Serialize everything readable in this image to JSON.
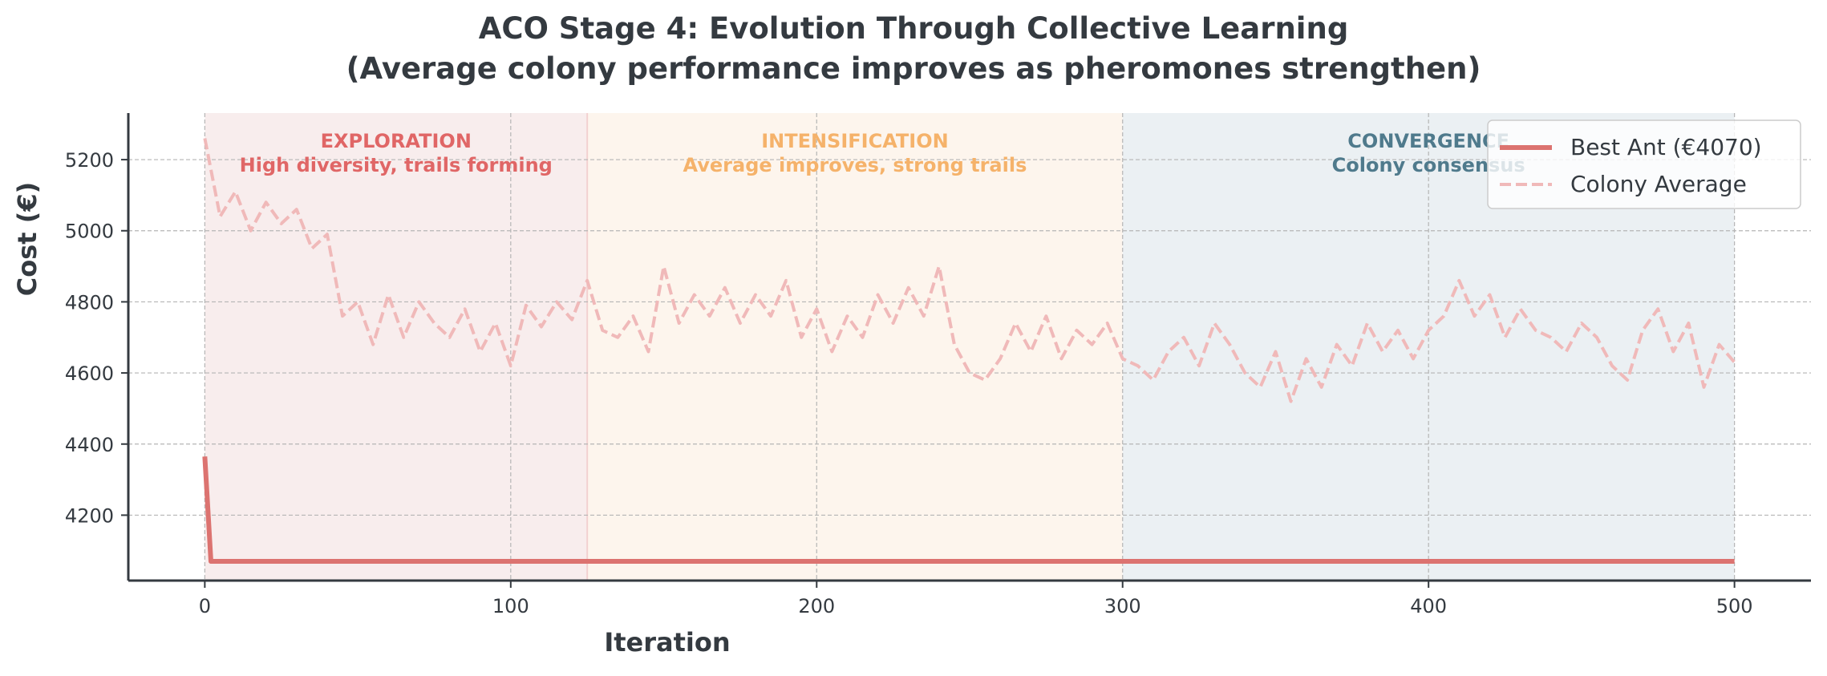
{
  "chart_data": {
    "type": "line",
    "title": "ACO Stage 4: Evolution Through Collective Learning",
    "subtitle": "(Average colony performance improves as pheromones strengthen)",
    "xlabel": "Iteration",
    "ylabel": "Cost (€)",
    "xlim": [
      -25,
      525
    ],
    "ylim": [
      4016,
      5331
    ],
    "xticks": [
      0,
      100,
      200,
      300,
      400,
      500
    ],
    "yticks": [
      4200,
      4400,
      4600,
      4800,
      5000,
      5200
    ],
    "grid": true,
    "legend_position": "top-right",
    "regions": [
      {
        "name": "exploration",
        "start": 0,
        "end": 125,
        "label": "EXPLORATION",
        "sublabel": "High diversity, trails forming",
        "color": "#e06666",
        "fill": "#f8eded"
      },
      {
        "name": "intensification",
        "start": 125,
        "end": 300,
        "label": "INTENSIFICATION",
        "sublabel": "Average improves, strong trails",
        "color": "#f5b26a",
        "fill": "#fdf5ed"
      },
      {
        "name": "convergence",
        "start": 300,
        "end": 500,
        "label": "CONVERGENCE",
        "sublabel": "Colony consensus",
        "color": "#4f7a8c",
        "fill": "#ebf0f3"
      }
    ],
    "series": [
      {
        "name": "Best Ant (€4070)",
        "color": "#dc7370",
        "style": "solid",
        "x": [
          0,
          2,
          500
        ],
        "values": [
          4365,
          4070,
          4070
        ]
      },
      {
        "name": "Colony Average",
        "color": "#f0b9b9",
        "style": "dashed",
        "x": [
          0,
          5,
          10,
          15,
          20,
          25,
          30,
          35,
          40,
          45,
          50,
          55,
          60,
          65,
          70,
          75,
          80,
          85,
          90,
          95,
          100,
          105,
          110,
          115,
          120,
          125,
          130,
          135,
          140,
          145,
          150,
          155,
          160,
          165,
          170,
          175,
          180,
          185,
          190,
          195,
          200,
          205,
          210,
          215,
          220,
          225,
          230,
          235,
          240,
          245,
          250,
          255,
          260,
          265,
          270,
          275,
          280,
          285,
          290,
          295,
          300,
          305,
          310,
          315,
          320,
          325,
          330,
          335,
          340,
          345,
          350,
          355,
          360,
          365,
          370,
          375,
          380,
          385,
          390,
          395,
          400,
          405,
          410,
          415,
          420,
          425,
          430,
          435,
          440,
          445,
          450,
          455,
          460,
          465,
          470,
          475,
          480,
          485,
          490,
          495,
          500
        ],
        "values": [
          5260,
          5040,
          5110,
          5000,
          5080,
          5020,
          5060,
          4950,
          4990,
          4760,
          4800,
          4680,
          4820,
          4700,
          4800,
          4740,
          4700,
          4780,
          4660,
          4740,
          4620,
          4790,
          4730,
          4800,
          4750,
          4860,
          4720,
          4700,
          4760,
          4660,
          4900,
          4740,
          4820,
          4760,
          4840,
          4740,
          4820,
          4760,
          4860,
          4700,
          4780,
          4660,
          4760,
          4700,
          4820,
          4740,
          4840,
          4760,
          4900,
          4680,
          4600,
          4580,
          4640,
          4740,
          4660,
          4760,
          4640,
          4720,
          4680,
          4740,
          4640,
          4620,
          4580,
          4660,
          4700,
          4620,
          4740,
          4680,
          4600,
          4560,
          4660,
          4520,
          4640,
          4560,
          4680,
          4620,
          4740,
          4660,
          4720,
          4640,
          4720,
          4760,
          4860,
          4760,
          4820,
          4700,
          4780,
          4720,
          4700,
          4660,
          4740,
          4700,
          4620,
          4580,
          4720,
          4780,
          4660,
          4740,
          4560,
          4680,
          4630
        ]
      }
    ]
  }
}
